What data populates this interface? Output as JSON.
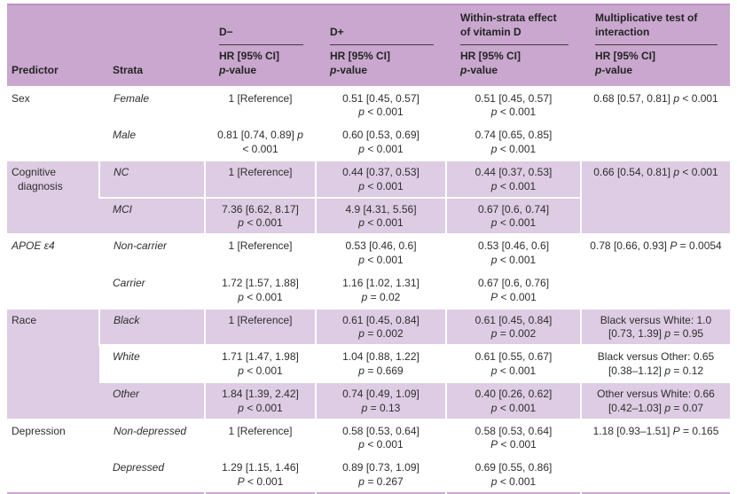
{
  "colors": {
    "header_bg": "#c9a7ce",
    "header_top_edge": "#bb90c3",
    "row_shade": "#ddcce3",
    "header_rule": "#3c3c3c",
    "text": "#2e2e2e",
    "bottom_border": "#c9a7ce"
  },
  "table": {
    "columns": [
      {
        "key": "predictor",
        "label": "Predictor"
      },
      {
        "key": "strata",
        "label": "Strata"
      },
      {
        "key": "dminus",
        "label": "D−",
        "sub": "HR [95% CI]\np-value"
      },
      {
        "key": "dplus",
        "label": "D+",
        "sub": "HR [95% CI]\np-value"
      },
      {
        "key": "within",
        "label": "Within-strata effect\nof vitamin D",
        "sub": "HR [95% CI]\np-value"
      },
      {
        "key": "interaction",
        "label": "Multiplicative test of\ninteraction",
        "sub": "HR [95% CI]\np-value"
      }
    ],
    "groups": [
      {
        "predictor": "Sex",
        "italic": false,
        "interaction": "0.68 [0.57, 0.81] p < 0.001",
        "rows": [
          {
            "strata": "Female",
            "shaded": false,
            "dminus": "1 [Reference]",
            "dplus": "0.51 [0.45, 0.57]\np < 0.001",
            "within": "0.51 [0.45, 0.57]\np < 0.001"
          },
          {
            "strata": "Male",
            "shaded": false,
            "dminus": "0.81 [0.74, 0.89] p\n< 0.001",
            "dplus": "0.60 [0.53, 0.69]\np < 0.001",
            "within": "0.74 [0.65, 0.85]\np < 0.001"
          }
        ]
      },
      {
        "predictor": "Cognitive\ndiagnosis",
        "italic": false,
        "interaction": "0.66 [0.54, 0.81] p < 0.001",
        "rows": [
          {
            "strata": "NC",
            "shaded": true,
            "dminus": "1 [Reference]",
            "dplus": "0.44 [0.37, 0.53]\np < 0.001",
            "within": "0.44 [0.37, 0.53]\np < 0.001"
          },
          {
            "strata": "MCI",
            "shaded": true,
            "dminus": "7.36 [6.62, 8.17]\np < 0.001",
            "dplus": "4.9 [4.31, 5.56]\np < 0.001",
            "within": "0.67 [0.6, 0.74]\np < 0.001"
          }
        ]
      },
      {
        "predictor": "APOE ε4",
        "italic": true,
        "interaction": "0.78 [0.66, 0.93] P = 0.0054",
        "rows": [
          {
            "strata": "Non-carrier",
            "shaded": false,
            "dminus": "1 [Reference]",
            "dplus": "0.53 [0.46, 0.6]\np < 0.001",
            "within": "0.53 [0.46, 0.6]\np < 0.001"
          },
          {
            "strata": "Carrier",
            "shaded": false,
            "dminus": "1.72 [1.57, 1.88]\np < 0.001",
            "dplus": "1.16 [1.02, 1.31]\np = 0.02",
            "within": "0.67 [0.6, 0.76]\nP < 0.001"
          }
        ]
      },
      {
        "predictor": "Race",
        "italic": false,
        "rows": [
          {
            "strata": "Black",
            "shaded": true,
            "dminus": "1 [Reference]",
            "dplus": "0.61 [0.45, 0.84]\np = 0.002",
            "within": "0.61 [0.45, 0.84]\np = 0.002",
            "interaction": "Black versus White: 1.0\n[0.73, 1.39] p = 0.95"
          },
          {
            "strata": "White",
            "shaded": false,
            "dminus": "1.71 [1.47, 1.98]\np < 0.001",
            "dplus": "1.04 [0.88, 1.22]\np = 0.669",
            "within": "0.61 [0.55, 0.67]\np < 0.001",
            "interaction": "Black versus Other: 0.65\n[0.38–1.12] p = 0.12"
          },
          {
            "strata": "Other",
            "shaded": true,
            "dminus": "1.84 [1.39, 2.42]\np < 0.001",
            "dplus": "0.74 [0.49, 1.09]\np = 0.13",
            "within": "0.40 [0.26, 0.62]\np < 0.001",
            "interaction": "Other versus White: 0.66\n[0.42–1.03] p = 0.07"
          }
        ]
      },
      {
        "predictor": "Depression",
        "italic": false,
        "interaction": "1.18 [0.93–1.51] P = 0.165",
        "rows": [
          {
            "strata": "Non-depressed",
            "shaded": false,
            "dminus": "1 [Reference]",
            "dplus": "0.58 [0.53, 0.64]\np < 0.001",
            "within": "0.58 [0.53, 0.64]\nP < 0.001"
          },
          {
            "strata": "Depressed",
            "shaded": false,
            "dminus": "1.29 [1.15, 1.46]\nP < 0.001",
            "dplus": "0.89 [0.73, 1.09]\np = 0.267",
            "within": "0.69 [0.55, 0.86]\np < 0.001"
          }
        ]
      }
    ]
  }
}
